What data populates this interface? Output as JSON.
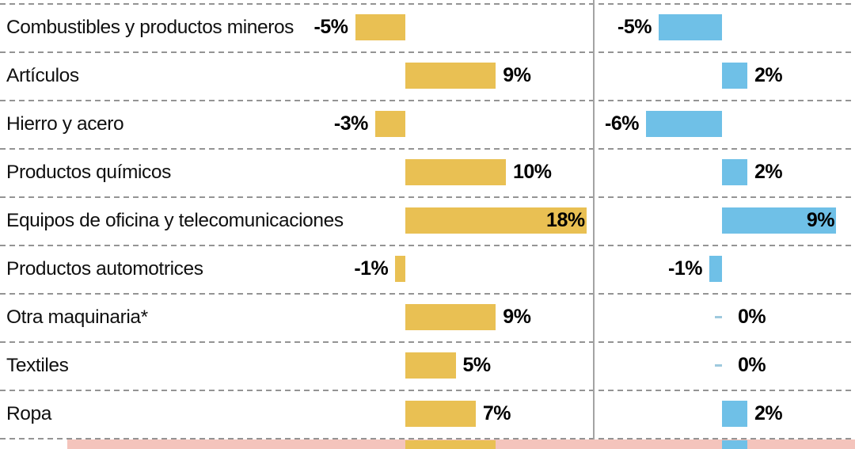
{
  "chart_data": {
    "type": "bar",
    "orientation": "horizontal",
    "title": "",
    "categories": [
      "Combustibles y productos mineros",
      "Artículos",
      "Hierro y acero",
      "Productos químicos",
      "Equipos de oficina y telecomunicaciones",
      "Productos automotrices",
      "Otra maquinaria*",
      "Textiles",
      "Ropa"
    ],
    "series": [
      {
        "name": "left",
        "color": "#e9c053",
        "values": [
          -5,
          9,
          -3,
          10,
          18,
          -1,
          9,
          5,
          7
        ],
        "labels": [
          "-5%",
          "9%",
          "-3%",
          "10%",
          "18%",
          "-1%",
          "9%",
          "5%",
          "7%"
        ]
      },
      {
        "name": "right",
        "color": "#6fc0e7",
        "values": [
          -5,
          2,
          -6,
          2,
          9,
          -1,
          0,
          0,
          2
        ],
        "labels": [
          "-5%",
          "2%",
          "-6%",
          "2%",
          "9%",
          "-1%",
          "0%",
          "0%",
          "2%"
        ]
      }
    ],
    "grid": "dashed-horizontal",
    "legend_position": "none",
    "partial_bottom_row": {
      "visible": true,
      "highlight_color": "#f4c4bc",
      "left_value_estimate": 9,
      "right_value_estimate": 2
    }
  },
  "colors": {
    "bar_left": "#e9c053",
    "bar_right": "#6fc0e7",
    "grid_line": "#949494",
    "panel_divider": "#a3a3a3",
    "zero_tick": "#9ec9de",
    "highlight": "#f4c4bc",
    "text": "#101010"
  }
}
